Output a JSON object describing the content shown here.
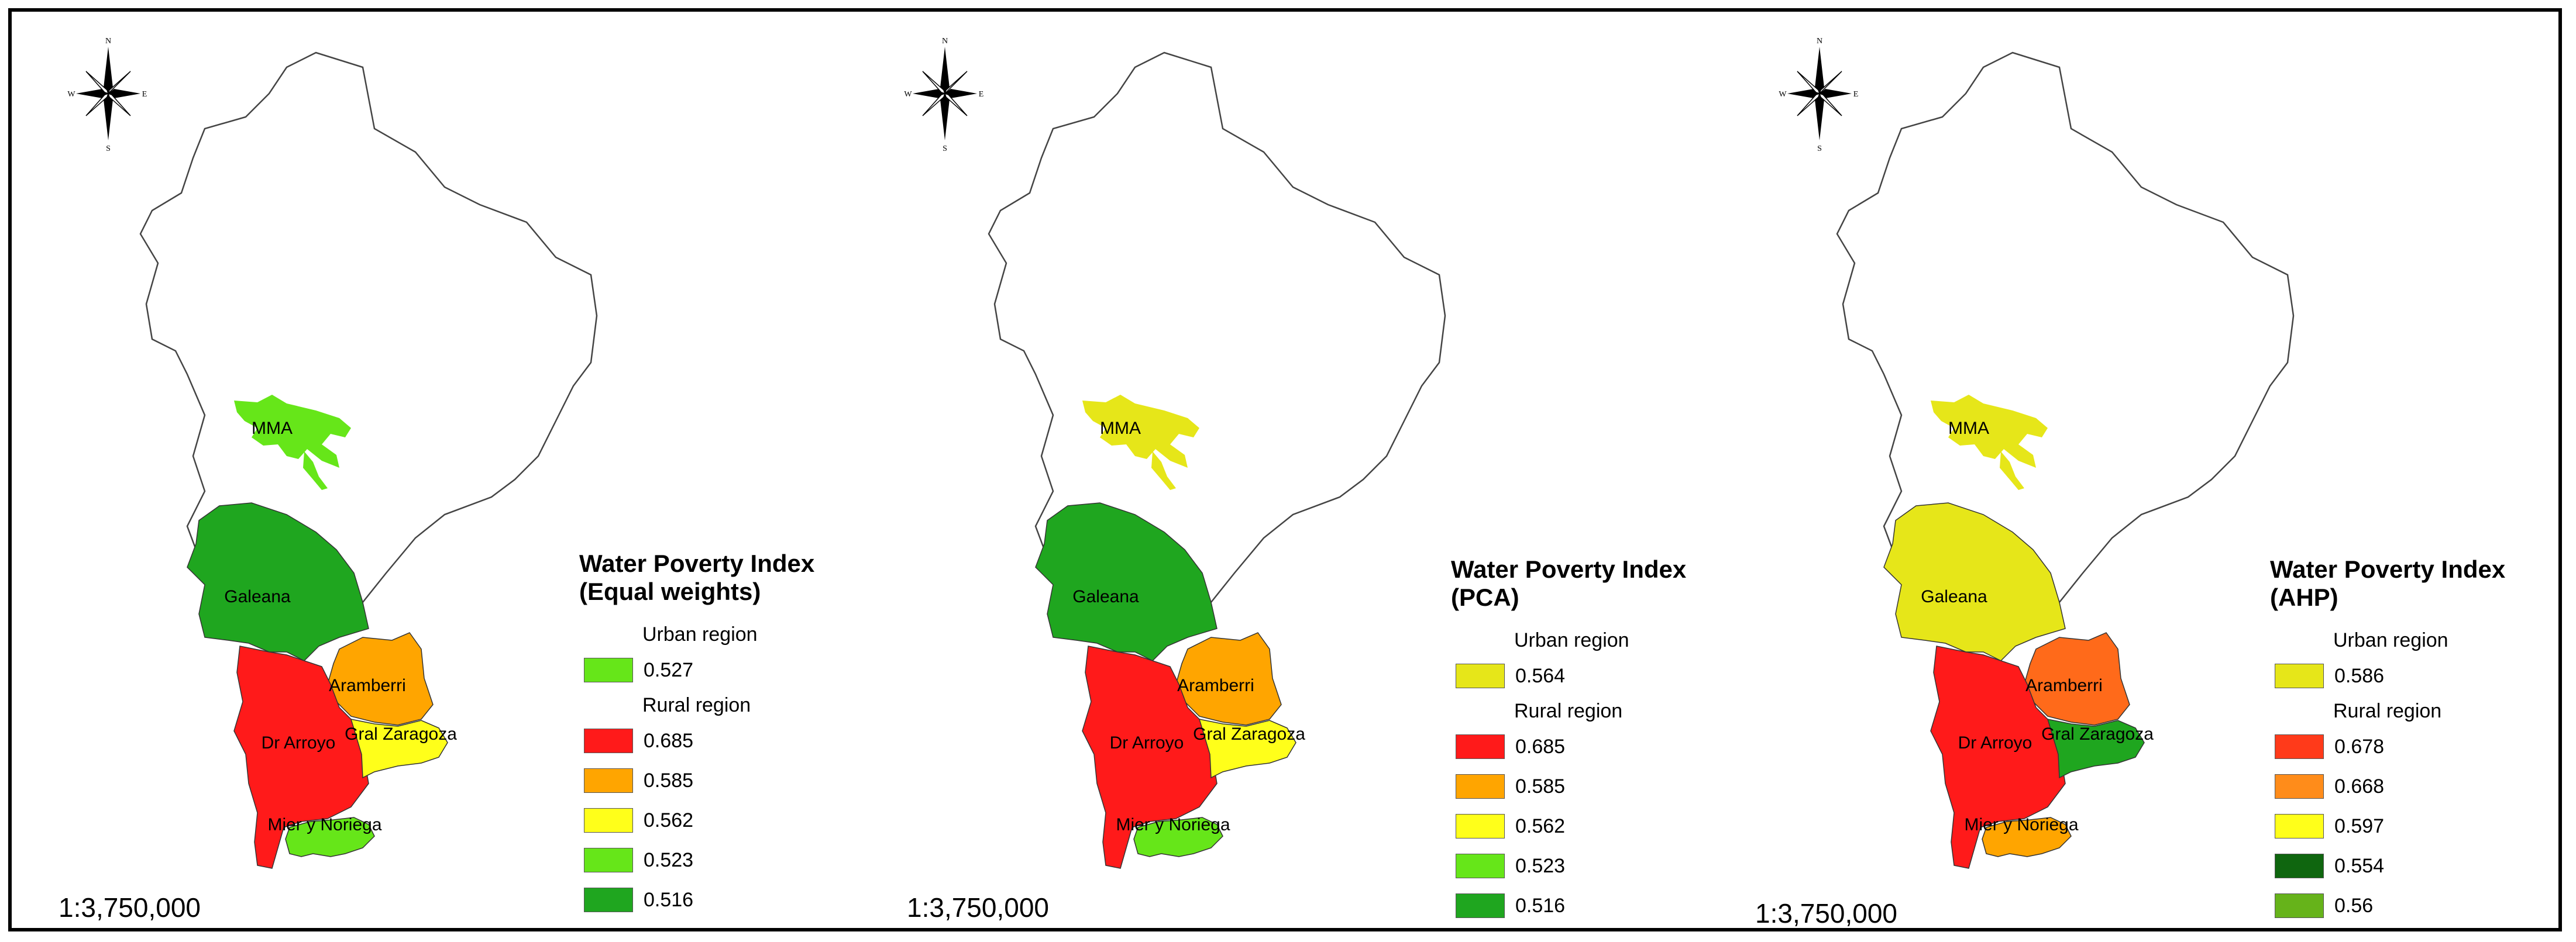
{
  "scale_text": "1:3,750,000",
  "compass_letters": {
    "n": "N",
    "s": "S",
    "e": "E",
    "w": "W"
  },
  "region_labels": {
    "mma": "MMA",
    "galeana": "Galeana",
    "aramberri": "Aramberri",
    "dr_arroyo": "Dr Arroyo",
    "gral_zaragoza": "Gral Zaragoza",
    "mier_noriega": "Mier y Noriega"
  },
  "panels": [
    {
      "title_line1": "Water Poverty Index",
      "title_line2": "(Equal weights)",
      "urban_label": "Urban region",
      "rural_label": "Rural region",
      "urban": {
        "value": "0.527",
        "color": "#66e619"
      },
      "rural": [
        {
          "value": "0.685",
          "color": "#ff1a1a"
        },
        {
          "value": "0.585",
          "color": "#ffa500"
        },
        {
          "value": "0.562",
          "color": "#ffff1a"
        },
        {
          "value": "0.523",
          "color": "#66e619"
        },
        {
          "value": "0.516",
          "color": "#1fa61f"
        }
      ],
      "region_colors": {
        "mma": "#66e619",
        "galeana": "#1fa61f",
        "aramberri": "#ffa500",
        "dr_arroyo": "#ff1a1a",
        "gral_zaragoza": "#ffff1a",
        "mier_noriega": "#66e619"
      }
    },
    {
      "title_line1": "Water Poverty Index",
      "title_line2": "(PCA)",
      "urban_label": "Urban region",
      "rural_label": "Rural region",
      "urban": {
        "value": "0.564",
        "color": "#e6e619"
      },
      "rural": [
        {
          "value": "0.685",
          "color": "#ff1a1a"
        },
        {
          "value": "0.585",
          "color": "#ffa500"
        },
        {
          "value": "0.562",
          "color": "#ffff1a"
        },
        {
          "value": "0.523",
          "color": "#66e619"
        },
        {
          "value": "0.516",
          "color": "#1fa61f"
        }
      ],
      "region_colors": {
        "mma": "#e6e619",
        "galeana": "#1fa61f",
        "aramberri": "#ffa500",
        "dr_arroyo": "#ff1a1a",
        "gral_zaragoza": "#ffff1a",
        "mier_noriega": "#66e619"
      }
    },
    {
      "title_line1": "Water Poverty Index",
      "title_line2": "(AHP)",
      "urban_label": "Urban region",
      "rural_label": "Rural region",
      "urban": {
        "value": "0.586",
        "color": "#e6e619"
      },
      "rural": [
        {
          "value": "0.678",
          "color": "#ff3a1a"
        },
        {
          "value": "0.668",
          "color": "#ff8c1a"
        },
        {
          "value": "0.597",
          "color": "#ffff1a"
        },
        {
          "value": "0.554",
          "color": "#0f660f"
        },
        {
          "value": "0.56",
          "color": "#66b31a"
        }
      ],
      "region_colors": {
        "mma": "#e6e619",
        "galeana": "#e6e619",
        "aramberri": "#ff6a1a",
        "dr_arroyo": "#ff1a1a",
        "gral_zaragoza": "#1fa61f",
        "mier_noriega": "#ffa500"
      }
    }
  ]
}
